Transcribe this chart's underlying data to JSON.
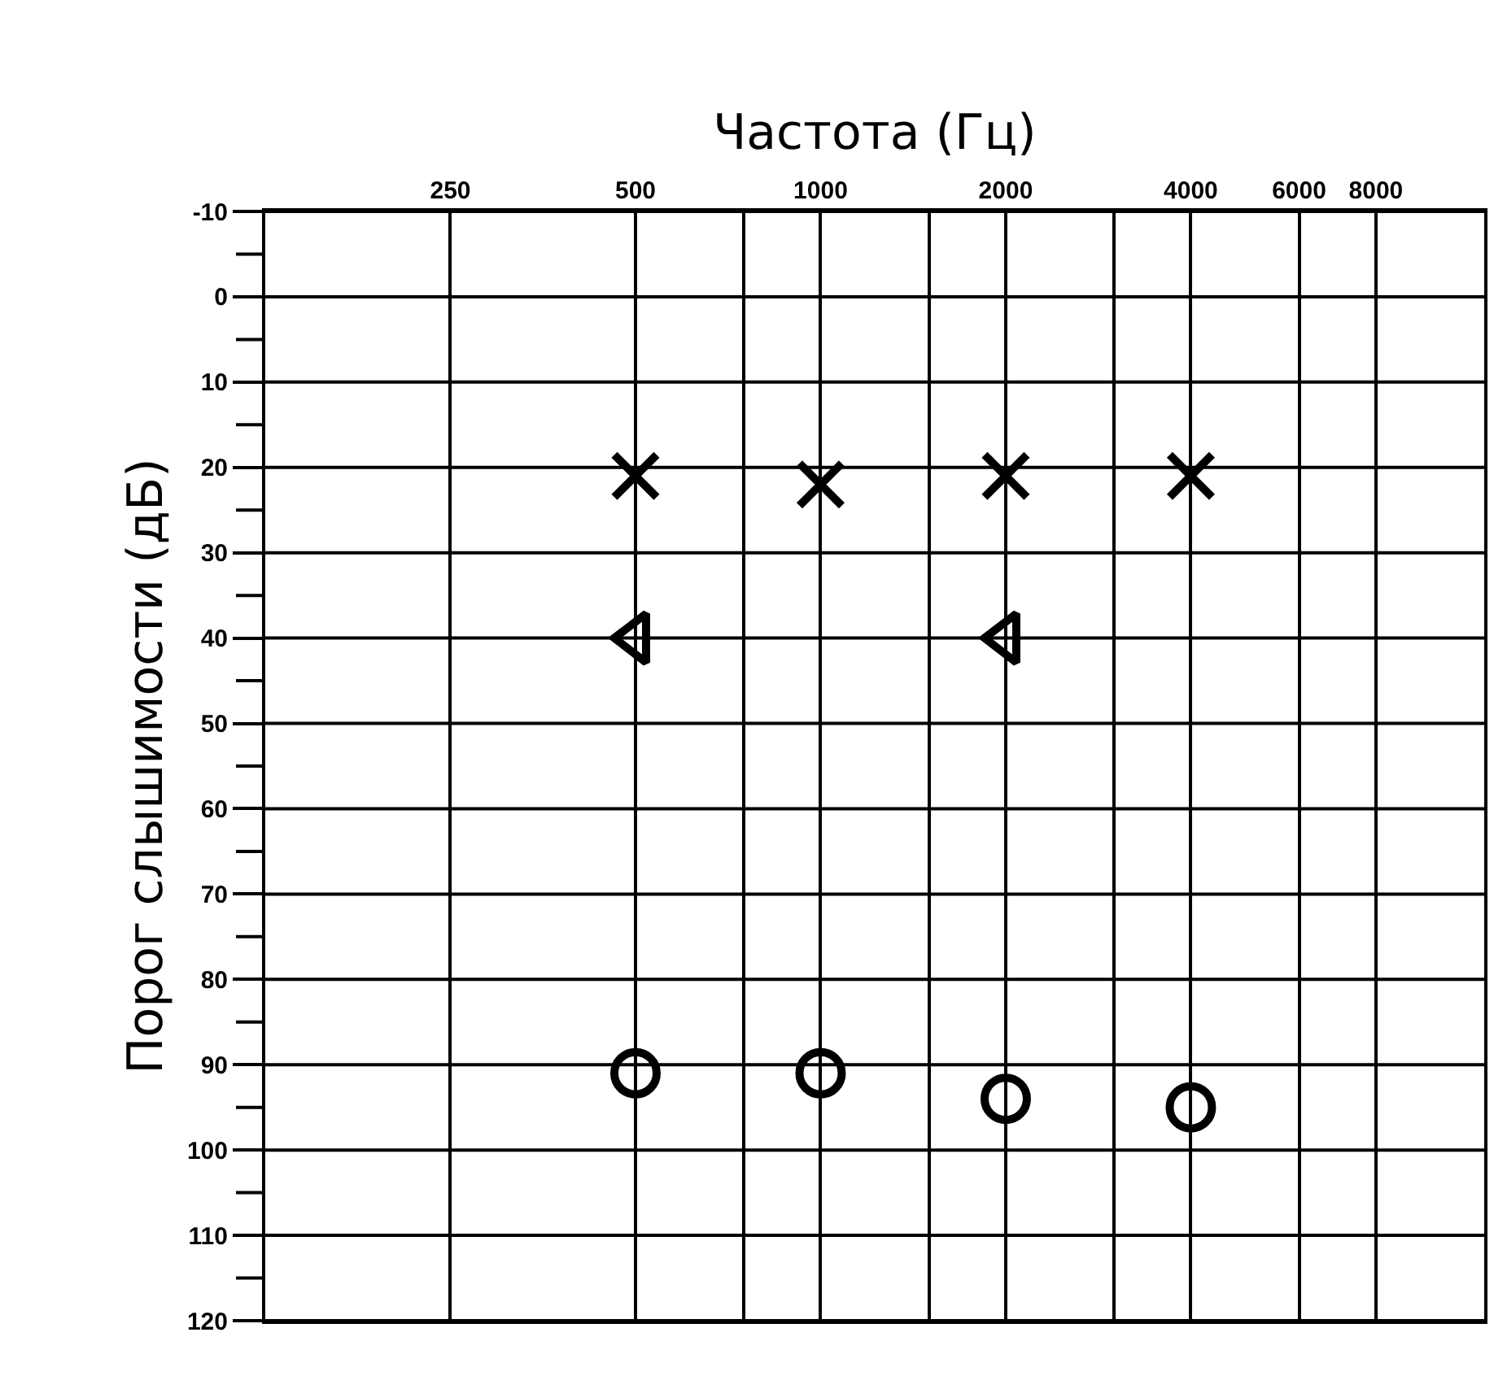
{
  "chart_data": {
    "type": "scatter",
    "xlabel": "Частота (Гц)",
    "ylabel": "Порог слышимости (дБ)",
    "log": "x",
    "grid": true,
    "xlim": [
      125,
      12000
    ],
    "xticks": [
      250,
      500,
      {
        "value": 750,
        "label": null
      },
      1000,
      {
        "value": 1500,
        "label": null
      },
      2000,
      {
        "value": 3000,
        "label": null
      },
      4000,
      6000,
      8000
    ],
    "ylim": [
      120,
      -10
    ],
    "yticks": [
      -10,
      0,
      10,
      20,
      30,
      40,
      50,
      60,
      70,
      80,
      90,
      100,
      110,
      120
    ],
    "series": [
      {
        "x": [
          500,
          1000,
          2000,
          4000
        ],
        "values": [
          21,
          22,
          21,
          21
        ],
        "color": "#000000",
        "marker": "cross"
      },
      {
        "x": [
          500,
          2000
        ],
        "values": [
          40,
          40
        ],
        "color": "#000000",
        "marker": "triangle"
      },
      {
        "x": [
          500,
          1000,
          2000,
          4000
        ],
        "values": [
          91,
          91,
          94,
          95
        ],
        "color": "#000000",
        "marker": "circle"
      }
    ]
  }
}
